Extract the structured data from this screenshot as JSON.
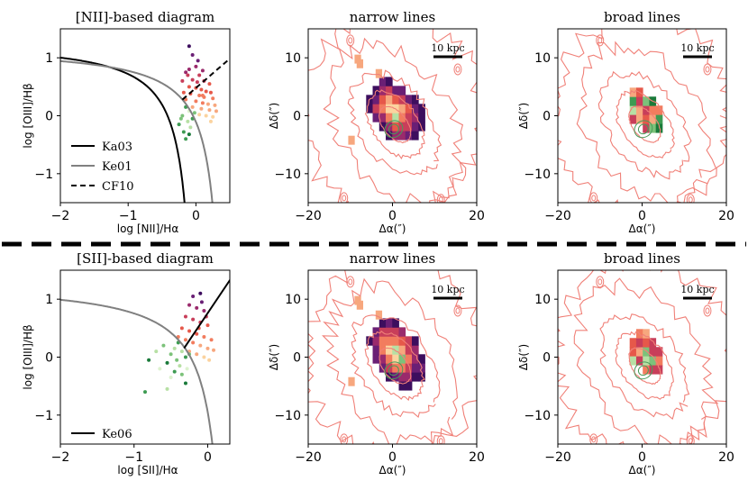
{
  "colors": {
    "ka03": "#000000",
    "ke01": "#808080",
    "cf10": "#000000",
    "ke06": "#000000",
    "contour": "#f08078",
    "narrow_scale": [
      "#3d0e5e",
      "#6a1f75",
      "#9a2a6c",
      "#c83e5a",
      "#e6584a",
      "#f27c5e",
      "#f7a77e",
      "#fbd39f"
    ],
    "broad_green": [
      "#1a7a3a",
      "#3d9b52",
      "#7cc27a",
      "#b7e0a4",
      "#ddf2cf"
    ]
  },
  "separator_style": "dashed",
  "rows": [
    {
      "bpt": {
        "title": "[NII]-based diagram",
        "xlabel": "log [NII]/Hα",
        "ylabel": "log [OIII]/Hβ",
        "xlim": [
          -2,
          0.5
        ],
        "ylim": [
          -1.5,
          1.5
        ],
        "xticks": [
          {
            "v": -2,
            "t": "−2"
          },
          {
            "v": -1,
            "t": "−1"
          },
          {
            "v": 0,
            "t": "0"
          }
        ],
        "yticks": [
          {
            "v": -1,
            "t": "−1"
          },
          {
            "v": 0,
            "t": "0"
          },
          {
            "v": 1,
            "t": "1"
          }
        ],
        "curves": [
          "ka03",
          "ke01",
          "cf10"
        ],
        "legend": [
          {
            "key": "ka03",
            "label": "Ka03",
            "style": "solid"
          },
          {
            "key": "ke01",
            "label": "Ke01",
            "style": "solid"
          },
          {
            "key": "cf10",
            "label": "CF10",
            "style": "dashed"
          }
        ],
        "points": {
          "narrow": [
            [
              -0.1,
              1.2
            ],
            [
              -0.05,
              1.05
            ],
            [
              -0.15,
              0.75
            ],
            [
              -0.1,
              0.8
            ],
            [
              0.0,
              0.85
            ],
            [
              0.05,
              0.7
            ],
            [
              0.1,
              0.78
            ],
            [
              -0.2,
              0.6
            ],
            [
              -0.05,
              0.62
            ],
            [
              0.02,
              0.58
            ],
            [
              0.12,
              0.6
            ],
            [
              0.2,
              0.55
            ],
            [
              -0.1,
              0.5
            ],
            [
              0.0,
              0.48
            ],
            [
              0.08,
              0.45
            ],
            [
              0.15,
              0.42
            ],
            [
              0.22,
              0.4
            ],
            [
              -0.18,
              0.4
            ],
            [
              -0.08,
              0.38
            ],
            [
              0.05,
              0.35
            ],
            [
              0.12,
              0.32
            ],
            [
              0.25,
              0.3
            ],
            [
              -0.15,
              0.28
            ],
            [
              0.0,
              0.25
            ],
            [
              0.1,
              0.22
            ],
            [
              0.18,
              0.2
            ],
            [
              0.28,
              0.18
            ],
            [
              -0.05,
              0.15
            ],
            [
              0.08,
              0.12
            ],
            [
              0.2,
              0.1
            ],
            [
              0.3,
              0.08
            ],
            [
              0.15,
              0.0
            ],
            [
              0.25,
              -0.02
            ],
            [
              0.05,
              0.02
            ],
            [
              0.22,
              -0.1
            ],
            [
              0.1,
              0.35
            ],
            [
              -0.12,
              0.7
            ],
            [
              0.03,
              0.95
            ]
          ],
          "broad": [
            [
              -0.15,
              0.15
            ],
            [
              -0.1,
              0.08
            ],
            [
              -0.2,
              0.0
            ],
            [
              -0.05,
              -0.05
            ],
            [
              -0.12,
              -0.1
            ],
            [
              -0.25,
              -0.15
            ],
            [
              -0.08,
              -0.2
            ],
            [
              -0.18,
              -0.28
            ],
            [
              -0.1,
              -0.32
            ],
            [
              -0.22,
              -0.05
            ],
            [
              -0.02,
              0.05
            ],
            [
              -0.15,
              -0.4
            ]
          ]
        }
      },
      "maps": [
        {
          "title": "narrow lines",
          "xlabel": "Δα(″)",
          "ylabel": "Δδ(″)",
          "lim": [
            -20,
            20
          ],
          "xticks": [
            {
              "v": -20,
              "t": "−20"
            },
            {
              "v": 0,
              "t": "0"
            },
            {
              "v": 20,
              "t": "20"
            }
          ],
          "yticks": [
            {
              "v": -10,
              "t": "−10"
            },
            {
              "v": 0,
              "t": "0"
            },
            {
              "v": 10,
              "t": "10"
            }
          ],
          "scalebar": "10 kpc",
          "kind": "narrow"
        },
        {
          "title": "broad lines",
          "xlabel": "Δα(″)",
          "ylabel": "Δδ(″)",
          "lim": [
            -20,
            20
          ],
          "xticks": [
            {
              "v": -20,
              "t": "−20"
            },
            {
              "v": 0,
              "t": "0"
            },
            {
              "v": 20,
              "t": "20"
            }
          ],
          "yticks": [
            {
              "v": -10,
              "t": "−10"
            },
            {
              "v": 0,
              "t": "0"
            },
            {
              "v": 10,
              "t": "10"
            }
          ],
          "scalebar": "10 kpc",
          "kind": "broad"
        }
      ]
    },
    {
      "bpt": {
        "title": "[SII]-based diagram",
        "xlabel": "log [SII]/Hα",
        "ylabel": "log [OIII]/Hβ",
        "xlim": [
          -2,
          0.3
        ],
        "ylim": [
          -1.5,
          1.5
        ],
        "xticks": [
          {
            "v": -2,
            "t": "−2"
          },
          {
            "v": -1,
            "t": "−1"
          },
          {
            "v": 0,
            "t": "0"
          }
        ],
        "yticks": [
          {
            "v": -1,
            "t": "−1"
          },
          {
            "v": 0,
            "t": "0"
          },
          {
            "v": 1,
            "t": "1"
          }
        ],
        "curves": [
          "ke01s",
          "ke06"
        ],
        "legend": [
          {
            "key": "ke06",
            "label": "Ke06",
            "style": "solid"
          }
        ],
        "points": {
          "narrow": [
            [
              -0.2,
              1.05
            ],
            [
              -0.1,
              1.1
            ],
            [
              -0.25,
              0.9
            ],
            [
              -0.15,
              0.85
            ],
            [
              -0.05,
              0.8
            ],
            [
              -0.3,
              0.7
            ],
            [
              -0.2,
              0.65
            ],
            [
              -0.1,
              0.6
            ],
            [
              0.0,
              0.55
            ],
            [
              -0.35,
              0.5
            ],
            [
              -0.25,
              0.45
            ],
            [
              -0.15,
              0.4
            ],
            [
              -0.05,
              0.35
            ],
            [
              0.05,
              0.3
            ],
            [
              -0.3,
              0.3
            ],
            [
              -0.2,
              0.25
            ],
            [
              -0.1,
              0.2
            ],
            [
              0.0,
              0.15
            ],
            [
              -0.25,
              0.1
            ],
            [
              -0.15,
              0.05
            ],
            [
              -0.05,
              0.0
            ],
            [
              0.02,
              -0.05
            ],
            [
              -0.12,
              0.5
            ],
            [
              -0.02,
              0.7
            ],
            [
              -0.4,
              0.35
            ],
            [
              0.08,
              0.12
            ],
            [
              -0.08,
              0.95
            ]
          ],
          "broad": [
            [
              -0.4,
              0.25
            ],
            [
              -0.45,
              0.15
            ],
            [
              -0.35,
              0.1
            ],
            [
              -0.5,
              0.05
            ],
            [
              -0.3,
              0.0
            ],
            [
              -0.42,
              -0.05
            ],
            [
              -0.55,
              -0.1
            ],
            [
              -0.38,
              -0.15
            ],
            [
              -0.28,
              -0.2
            ],
            [
              -0.45,
              -0.25
            ],
            [
              -0.6,
              0.2
            ],
            [
              -0.7,
              0.1
            ],
            [
              -0.35,
              -0.3
            ],
            [
              -0.25,
              0.05
            ],
            [
              -0.5,
              -0.35
            ],
            [
              -0.65,
              -0.2
            ],
            [
              -0.8,
              -0.05
            ],
            [
              -0.3,
              -0.45
            ],
            [
              -0.55,
              -0.55
            ],
            [
              -0.85,
              -0.6
            ]
          ]
        }
      },
      "maps": [
        {
          "title": "narrow lines",
          "xlabel": "Δα(″)",
          "ylabel": "Δδ(″)",
          "lim": [
            -20,
            20
          ],
          "xticks": [
            {
              "v": -20,
              "t": "−20"
            },
            {
              "v": 0,
              "t": "0"
            },
            {
              "v": 20,
              "t": "20"
            }
          ],
          "yticks": [
            {
              "v": -10,
              "t": "−10"
            },
            {
              "v": 0,
              "t": "0"
            },
            {
              "v": 10,
              "t": "10"
            }
          ],
          "scalebar": "10 kpc",
          "kind": "narrow"
        },
        {
          "title": "broad lines",
          "xlabel": "Δα(″)",
          "ylabel": "Δδ(″)",
          "lim": [
            -20,
            20
          ],
          "xticks": [
            {
              "v": -20,
              "t": "−20"
            },
            {
              "v": 0,
              "t": "0"
            },
            {
              "v": 20,
              "t": "20"
            }
          ],
          "yticks": [
            {
              "v": -10,
              "t": "−10"
            },
            {
              "v": 0,
              "t": "0"
            },
            {
              "v": 10,
              "t": "10"
            }
          ],
          "scalebar": "10 kpc",
          "kind": "broad"
        }
      ]
    }
  ],
  "chart_data": [
    {
      "type": "scatter",
      "title": "[NII]-based diagram",
      "xlabel": "log [NII]/Hα",
      "ylabel": "log [OIII]/Hβ",
      "xlim": [
        -2,
        0.5
      ],
      "ylim": [
        -1.5,
        1.5
      ],
      "legend": [
        "Ka03",
        "Ke01",
        "CF10"
      ]
    },
    {
      "type": "heatmap",
      "title": "narrow lines",
      "xlabel": "Δα(″)",
      "ylabel": "Δδ(″)",
      "xlim": [
        -20,
        20
      ],
      "ylim": [
        -15,
        15
      ],
      "annotation": "10 kpc"
    },
    {
      "type": "heatmap",
      "title": "broad lines",
      "xlabel": "Δα(″)",
      "ylabel": "Δδ(″)",
      "xlim": [
        -20,
        20
      ],
      "ylim": [
        -15,
        15
      ],
      "annotation": "10 kpc"
    },
    {
      "type": "scatter",
      "title": "[SII]-based diagram",
      "xlabel": "log [SII]/Hα",
      "ylabel": "log [OIII]/Hβ",
      "xlim": [
        -2,
        0.3
      ],
      "ylim": [
        -1.5,
        1.5
      ],
      "legend": [
        "Ke06"
      ]
    },
    {
      "type": "heatmap",
      "title": "narrow lines",
      "xlabel": "Δα(″)",
      "ylabel": "Δδ(″)",
      "xlim": [
        -20,
        20
      ],
      "ylim": [
        -15,
        15
      ],
      "annotation": "10 kpc"
    },
    {
      "type": "heatmap",
      "title": "broad lines",
      "xlabel": "Δα(″)",
      "ylabel": "Δδ(″)",
      "xlim": [
        -20,
        20
      ],
      "ylim": [
        -15,
        15
      ],
      "annotation": "10 kpc"
    }
  ]
}
